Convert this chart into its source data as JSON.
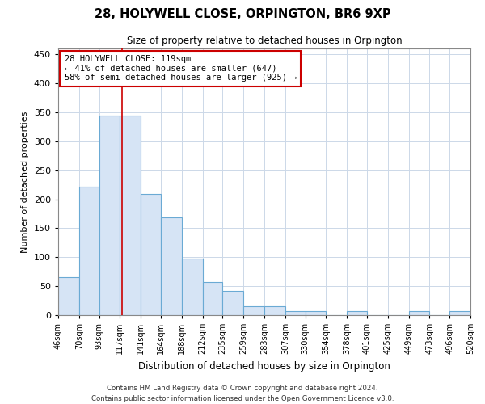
{
  "title": "28, HOLYWELL CLOSE, ORPINGTON, BR6 9XP",
  "subtitle": "Size of property relative to detached houses in Orpington",
  "xlabel": "Distribution of detached houses by size in Orpington",
  "ylabel": "Number of detached properties",
  "bar_values": [
    65,
    222,
    345,
    345,
    209,
    168,
    97,
    57,
    42,
    16,
    16,
    7,
    7,
    0,
    7,
    0,
    0,
    7,
    0,
    7
  ],
  "bar_color": "#d6e4f5",
  "bar_edge_color": "#6aaad4",
  "property_line_x": 119,
  "bin_edges": [
    46,
    70,
    93,
    117,
    141,
    164,
    188,
    212,
    235,
    259,
    283,
    307,
    330,
    354,
    378,
    401,
    425,
    449,
    473,
    496,
    520
  ],
  "annotation_line1": "28 HOLYWELL CLOSE: 119sqm",
  "annotation_line2": "← 41% of detached houses are smaller (647)",
  "annotation_line3": "58% of semi-detached houses are larger (925) →",
  "annotation_box_color": "#ffffff",
  "annotation_border_color": "#cc0000",
  "vline_color": "#cc0000",
  "ylim": [
    0,
    460
  ],
  "yticks": [
    0,
    50,
    100,
    150,
    200,
    250,
    300,
    350,
    400,
    450
  ],
  "footer_line1": "Contains HM Land Registry data © Crown copyright and database right 2024.",
  "footer_line2": "Contains public sector information licensed under the Open Government Licence v3.0.",
  "bg_color": "#ffffff",
  "grid_color": "#ccd8e8"
}
